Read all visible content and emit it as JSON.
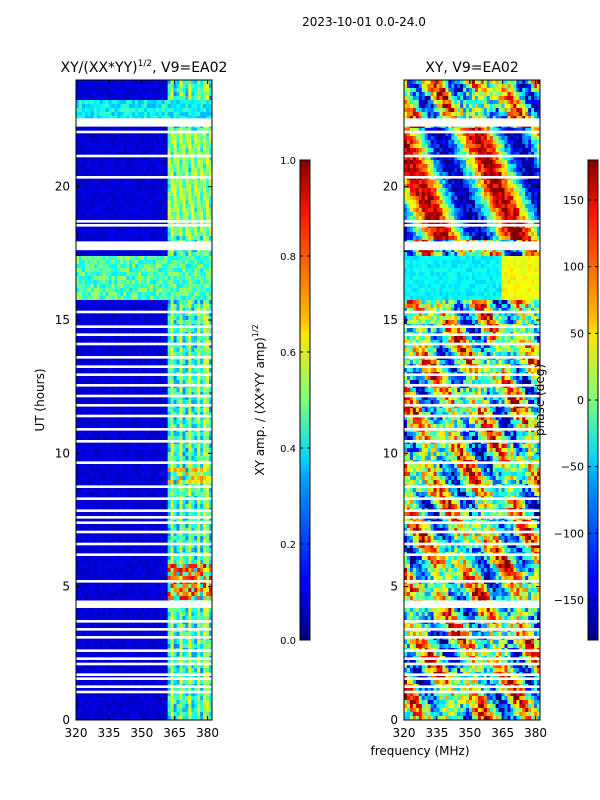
{
  "suptitle": "2023-10-01 0.0-24.0",
  "xlabel_shared": "frequency (MHz)",
  "chart_data": [
    {
      "type": "heatmap",
      "title_main": "XY/(XX*YY)",
      "title_sup": "1/2",
      "title_tail": ", V9=EA02",
      "xlabel": "",
      "ylabel": "UT (hours)",
      "xlim": [
        320,
        382
      ],
      "ylim": [
        0,
        24
      ],
      "xticks": [
        320,
        335,
        350,
        365,
        380
      ],
      "yticks": [
        0,
        5,
        10,
        15,
        20
      ],
      "colormap": "jet",
      "bright_channels_mhz": [
        364,
        368,
        372,
        376,
        379
      ],
      "colorbar": {
        "label_main": "XY amp. / (XX*YY amp)",
        "label_sup": "1/2",
        "range": [
          0.0,
          1.0
        ],
        "ticks": [
          "0.0",
          "0.2",
          "0.4",
          "0.6",
          "0.8",
          "1.0"
        ],
        "tick_values": [
          0.0,
          0.2,
          0.4,
          0.6,
          0.8,
          1.0
        ]
      }
    },
    {
      "type": "heatmap",
      "title": "XY, V9=EA02",
      "xlabel": "frequency (MHz)",
      "ylabel": "",
      "xlim": [
        320,
        382
      ],
      "ylim": [
        0,
        24
      ],
      "xticks": [
        320,
        335,
        350,
        365,
        380
      ],
      "yticks": [
        0,
        5,
        10,
        15,
        20
      ],
      "colormap": "jet",
      "colorbar": {
        "label": "phase (deg)",
        "range": [
          -180,
          180
        ],
        "ticks": [
          "−150",
          "−100",
          "−50",
          "0",
          "50",
          "100",
          "150"
        ],
        "tick_values": [
          -150,
          -100,
          -50,
          0,
          50,
          100,
          150
        ]
      }
    }
  ],
  "gaps_ut_hours": [
    1.05,
    1.25,
    1.55,
    1.7,
    2.1,
    2.3,
    2.6,
    3.1,
    3.4,
    3.7,
    4.25,
    4.4,
    5.2,
    6.2,
    6.6,
    7.05,
    7.4,
    7.6,
    7.85,
    8.3,
    8.75,
    9.65,
    10.45,
    10.9,
    11.4,
    11.8,
    12.15,
    12.55,
    12.95,
    13.25,
    13.6,
    14.1,
    14.45,
    14.75,
    15.3,
    17.9,
    18.55,
    18.7,
    20.35,
    21.15,
    22.05,
    22.3,
    22.5
  ]
}
